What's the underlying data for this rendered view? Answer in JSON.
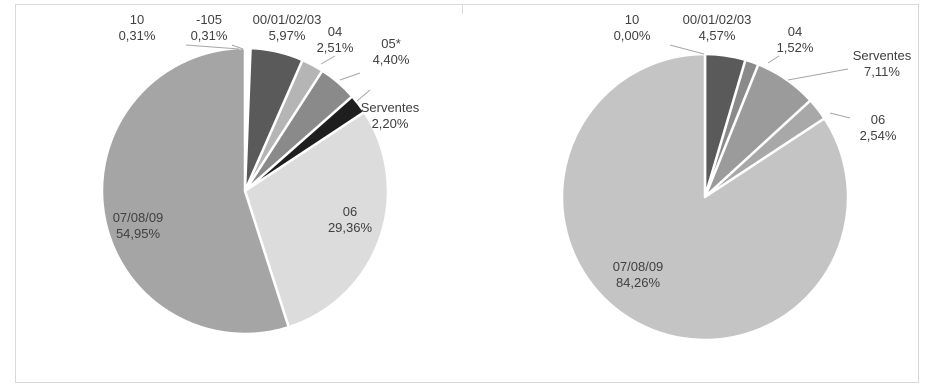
{
  "chart_data": [
    {
      "type": "pie",
      "title": "",
      "slices": [
        {
          "label": "10",
          "value": 0.31,
          "value_label": "0,31%",
          "color": "#ffffff"
        },
        {
          "label": "-105",
          "value": 0.31,
          "value_label": "0,31%",
          "color": "#ffffff"
        },
        {
          "label": "00/01/02/03",
          "value": 5.97,
          "value_label": "5,97%",
          "color": "#5a5a5a"
        },
        {
          "label": "04",
          "value": 2.51,
          "value_label": "2,51%",
          "color": "#b5b5b5"
        },
        {
          "label": "05*",
          "value": 4.4,
          "value_label": "4,40%",
          "color": "#8a8a8a"
        },
        {
          "label": "Serventes",
          "value": 2.2,
          "value_label": "2,20%",
          "color": "#1e1e1e"
        },
        {
          "label": "06",
          "value": 29.36,
          "value_label": "29,36%",
          "color": "#dcdcdc"
        },
        {
          "label": "07/08/09",
          "value": 54.95,
          "value_label": "54,95%",
          "color": "#a5a5a5"
        }
      ]
    },
    {
      "type": "pie",
      "title": "",
      "slices": [
        {
          "label": "10",
          "value": 0.0,
          "value_label": "0,00%",
          "color": "#ffffff"
        },
        {
          "label": "00/01/02/03",
          "value": 4.57,
          "value_label": "4,57%",
          "color": "#5a5a5a"
        },
        {
          "label": "04",
          "value": 1.52,
          "value_label": "1,52%",
          "color": "#8a8a8a"
        },
        {
          "label": "Serventes",
          "value": 7.11,
          "value_label": "7,11%",
          "color": "#9b9b9b"
        },
        {
          "label": "06",
          "value": 2.54,
          "value_label": "2,54%",
          "color": "#a8a8a8"
        },
        {
          "label": "07/08/09",
          "value": 84.26,
          "value_label": "84,26%",
          "color": "#c4c4c4"
        }
      ]
    }
  ]
}
